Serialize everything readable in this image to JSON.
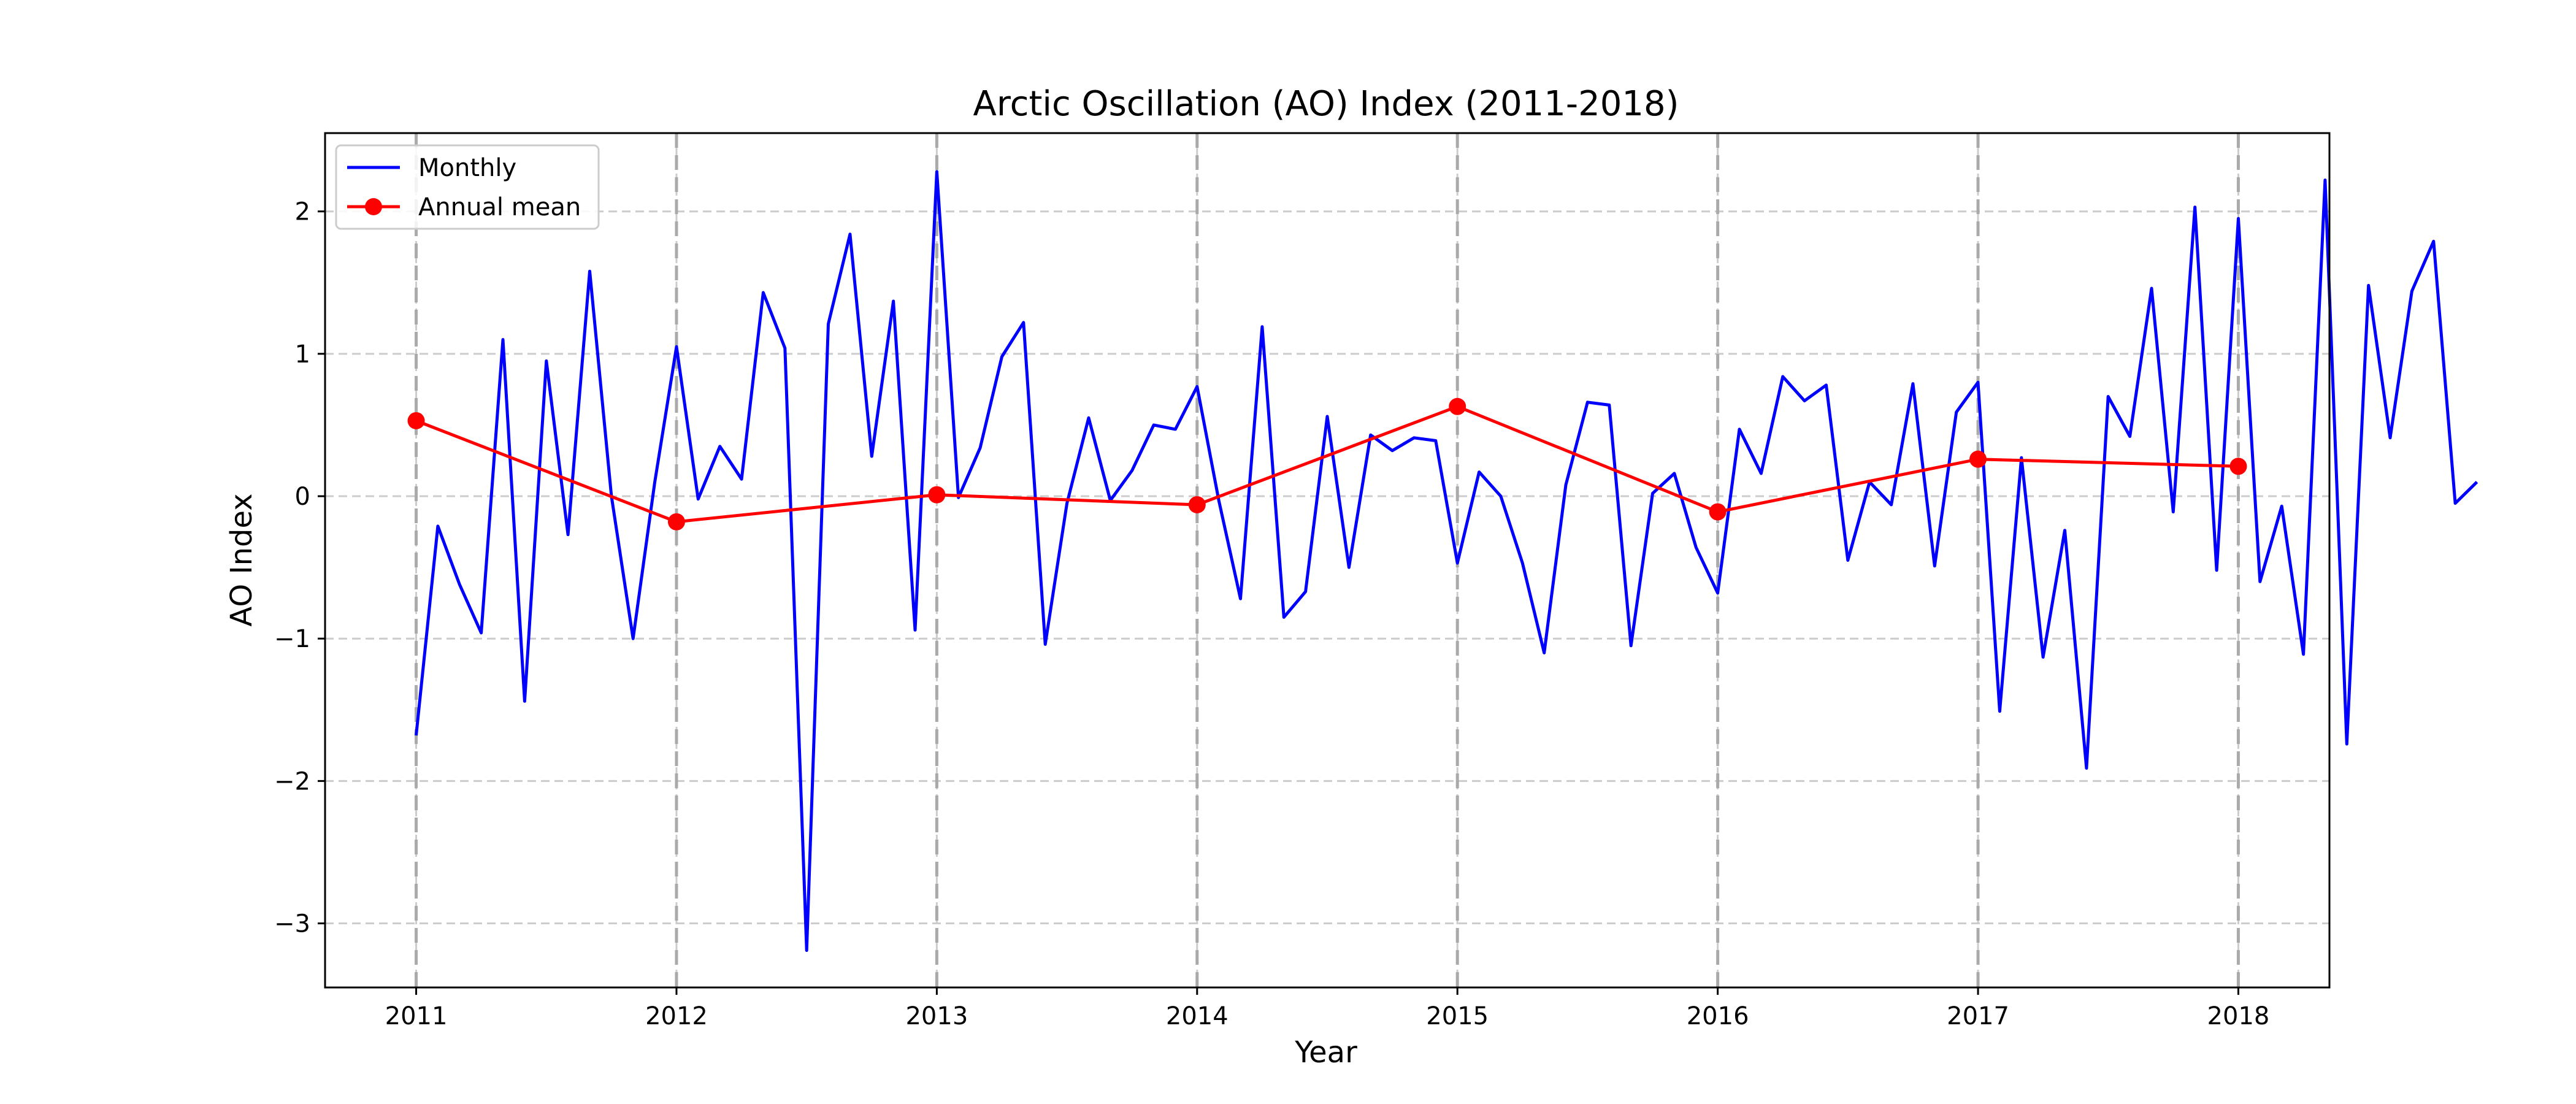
{
  "chart_data": {
    "type": "line",
    "title": "Arctic Oscillation (AO) Index (2011-2018)",
    "xlabel": "Year",
    "ylabel": "AO Index",
    "xlim": [
      2010.65,
      2018.35
    ],
    "ylim": [
      -3.45,
      2.55
    ],
    "x_ticks": [
      2011,
      2012,
      2013,
      2014,
      2015,
      2016,
      2017,
      2018
    ],
    "y_ticks": [
      -3,
      -2,
      -1,
      0,
      1,
      2
    ],
    "y_tick_labels": [
      "−3",
      "−2",
      "−1",
      "0",
      "1",
      "2"
    ],
    "grid": true,
    "year_lines": true,
    "legend": "upper-left",
    "colors": {
      "monthly": "#0000ff",
      "annual": "#ff0000",
      "grid": "#cccccc",
      "year_line": "#aaaaaa"
    },
    "series": [
      {
        "name": "Monthly",
        "start": 2011,
        "step": 0.0833333,
        "values": [
          -1.68,
          -0.21,
          -0.62,
          -0.96,
          1.1,
          -1.44,
          0.95,
          -0.27,
          1.58,
          0.0,
          -1.0,
          0.1,
          1.05,
          -0.02,
          0.35,
          0.12,
          1.43,
          1.04,
          -3.19,
          1.21,
          1.84,
          0.28,
          1.37,
          -0.94,
          2.28,
          -0.01,
          0.34,
          0.98,
          1.22,
          -1.04,
          -0.05,
          0.55,
          -0.03,
          0.18,
          0.5,
          0.47,
          0.77,
          -0.03,
          -0.72,
          1.19,
          -0.85,
          -0.67,
          0.56,
          -0.5,
          0.43,
          0.32,
          0.41,
          0.39,
          -0.47,
          0.17,
          0.0,
          -0.47,
          -1.1,
          0.08,
          0.66,
          0.64,
          -1.05,
          0.02,
          0.16,
          -0.36,
          -0.68,
          0.47,
          0.16,
          0.84,
          0.67,
          0.78,
          -0.45,
          0.1,
          -0.06,
          0.79,
          -0.49,
          0.59,
          0.8,
          -1.51,
          0.27,
          -1.13,
          -0.24,
          -1.91,
          0.7,
          0.42,
          1.46,
          -0.11,
          2.03,
          -0.52,
          1.95,
          -0.6,
          -0.07,
          -1.11,
          2.22,
          -1.74,
          1.48,
          0.41,
          1.44,
          1.79,
          -0.05,
          0.1
        ]
      },
      {
        "name": "Annual mean",
        "x": [
          2011,
          2012,
          2013,
          2014,
          2015,
          2016,
          2017,
          2018
        ],
        "values": [
          0.53,
          -0.18,
          0.01,
          -0.06,
          0.63,
          -0.11,
          0.26,
          0.21
        ]
      }
    ]
  }
}
